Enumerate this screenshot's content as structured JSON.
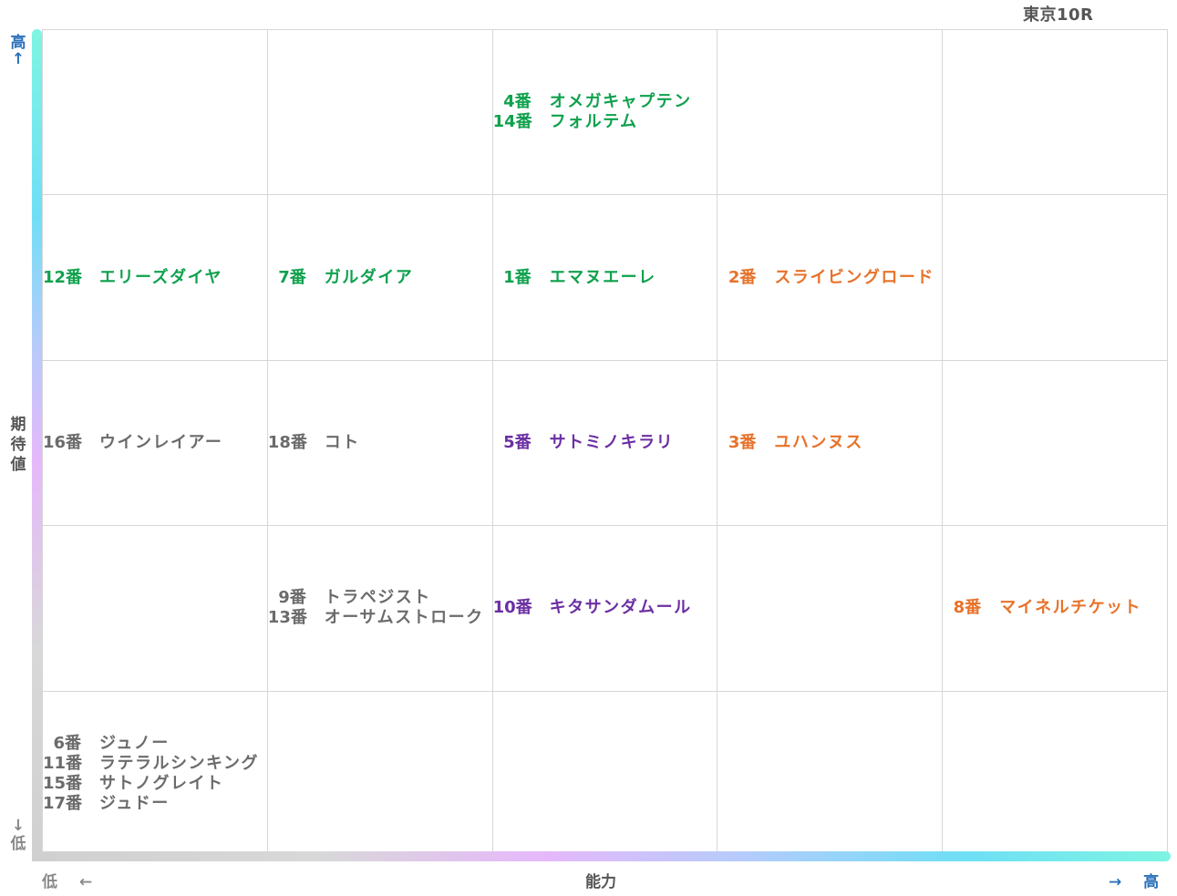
{
  "chart_data": {
    "type": "table",
    "title": "東京10R",
    "ylabel": "期待値",
    "xlabel": "能力",
    "y_high": "高",
    "y_low": "低",
    "x_low": "低",
    "x_high": "高",
    "arrow_left": "←",
    "arrow_right": "→",
    "arrow_up": "↑",
    "arrow_down": "↓",
    "columns": 5,
    "rows": 5,
    "series": [
      {
        "color": "#0fa14d"
      },
      {
        "color": "#e8722a"
      },
      {
        "color": "#6b2fa3"
      },
      {
        "color": "#6b6b6b"
      }
    ],
    "cells": [
      {
        "row": 0,
        "col": 2,
        "entries": [
          {
            "num": "4番",
            "name": "オメガキャプテン",
            "color": "#0fa14d"
          },
          {
            "num": "14番",
            "name": "フォルテム",
            "color": "#0fa14d"
          }
        ]
      },
      {
        "row": 1,
        "col": 0,
        "entries": [
          {
            "num": "12番",
            "name": "エリーズダイヤ",
            "color": "#0fa14d"
          }
        ]
      },
      {
        "row": 1,
        "col": 1,
        "entries": [
          {
            "num": "7番",
            "name": "ガルダイア",
            "color": "#0fa14d"
          }
        ]
      },
      {
        "row": 1,
        "col": 2,
        "entries": [
          {
            "num": "1番",
            "name": "エマヌエーレ",
            "color": "#0fa14d"
          }
        ]
      },
      {
        "row": 1,
        "col": 3,
        "entries": [
          {
            "num": "2番",
            "name": "スライビングロード",
            "color": "#e8722a"
          }
        ]
      },
      {
        "row": 2,
        "col": 0,
        "entries": [
          {
            "num": "16番",
            "name": "ウインレイアー",
            "color": "#6b6b6b"
          }
        ]
      },
      {
        "row": 2,
        "col": 1,
        "entries": [
          {
            "num": "18番",
            "name": "コト",
            "color": "#6b6b6b"
          }
        ]
      },
      {
        "row": 2,
        "col": 2,
        "entries": [
          {
            "num": "5番",
            "name": "サトミノキラリ",
            "color": "#6b2fa3"
          }
        ]
      },
      {
        "row": 2,
        "col": 3,
        "entries": [
          {
            "num": "3番",
            "name": "ユハンヌス",
            "color": "#e8722a"
          }
        ]
      },
      {
        "row": 3,
        "col": 1,
        "entries": [
          {
            "num": "9番",
            "name": "トラペジスト",
            "color": "#6b6b6b"
          },
          {
            "num": "13番",
            "name": "オーサムストローク",
            "color": "#6b6b6b"
          }
        ]
      },
      {
        "row": 3,
        "col": 2,
        "entries": [
          {
            "num": "10番",
            "name": "キタサンダムール",
            "color": "#6b2fa3"
          }
        ]
      },
      {
        "row": 3,
        "col": 4,
        "entries": [
          {
            "num": "8番",
            "name": "マイネルチケット",
            "color": "#e8722a"
          }
        ]
      },
      {
        "row": 4,
        "col": 0,
        "entries": [
          {
            "num": "6番",
            "name": "ジュノー",
            "color": "#6b6b6b"
          },
          {
            "num": "11番",
            "name": "ラテラルシンキング",
            "color": "#6b6b6b"
          },
          {
            "num": "15番",
            "name": "サトノグレイト",
            "color": "#6b6b6b"
          },
          {
            "num": "17番",
            "name": "ジュドー",
            "color": "#6b6b6b"
          }
        ]
      }
    ]
  }
}
